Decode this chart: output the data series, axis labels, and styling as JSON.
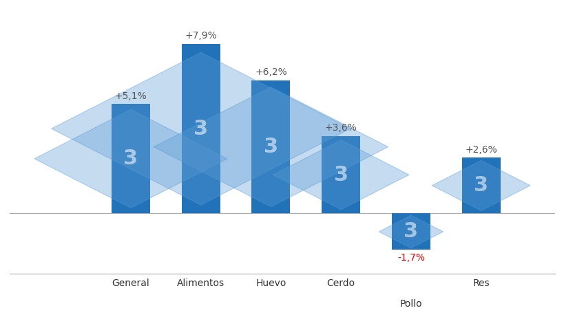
{
  "categories": [
    "General",
    "Alimentos",
    "Huevo",
    "Cerdo",
    "Pollo",
    "Res"
  ],
  "values": [
    5.1,
    7.9,
    6.2,
    3.6,
    -1.7,
    2.6
  ],
  "labels": [
    "+5,1%",
    "+7,9%",
    "+6,2%",
    "+3,6%",
    "-1,7%",
    "+2,6%"
  ],
  "bar_color_positive": "#2172B8",
  "bar_color_negative": "#2172B8",
  "label_color_positive": "#555555",
  "label_color_negative": "#e00000",
  "background_color": "#ffffff",
  "watermark_color": "#5B9BD5",
  "watermark_alpha": 0.35,
  "figsize": [
    8.2,
    4.61
  ],
  "dpi": 100,
  "ylim_min": -2.8,
  "ylim_max": 9.5,
  "bar_width": 0.55,
  "xlabel_fontsize": 10,
  "label_fontsize": 10
}
